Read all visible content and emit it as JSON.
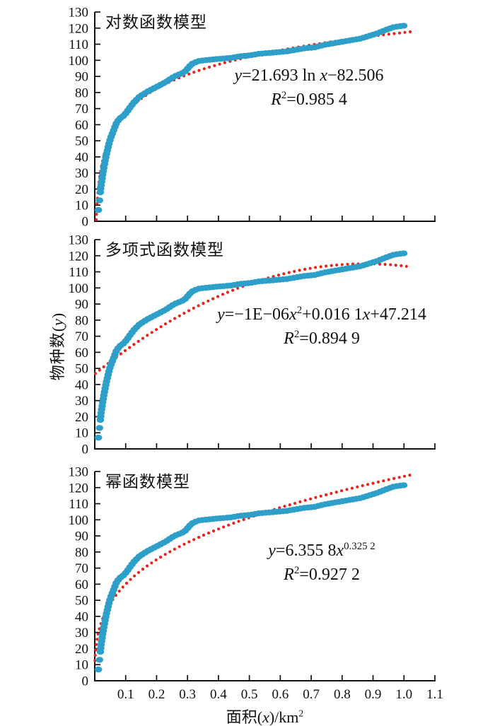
{
  "figure": {
    "x_axis_title_text": "面积(x)/km²",
    "y_axis_title_text": "物种数(y)",
    "x_axis_title_segments": [
      {
        "t": "面积("
      },
      {
        "t": "x",
        "i": 1
      },
      {
        "t": ")/km"
      },
      {
        "t": "2",
        "sup": 1
      }
    ],
    "y_axis_title_segments": [
      {
        "t": "物种数("
      },
      {
        "t": "y",
        "i": 1
      },
      {
        "t": ")"
      }
    ]
  },
  "chart_data": {
    "type": "scatter",
    "xlabel": "面积(x)/km²",
    "ylabel": "物种数(y)",
    "xlim": [
      0,
      1.1
    ],
    "ylim": [
      0,
      130
    ],
    "x_ticks": [
      0.1,
      0.2,
      0.3,
      0.4,
      0.5,
      0.6,
      0.7,
      0.8,
      0.9,
      1.0,
      1.1
    ],
    "y_ticks": [
      0,
      10,
      20,
      30,
      40,
      50,
      60,
      70,
      80,
      90,
      100,
      110,
      120,
      130
    ],
    "grid": false,
    "legend": "none",
    "colors": {
      "points": "#2d9fc9",
      "fit": "#e8231a",
      "axis": "#111111"
    },
    "loose_points": [
      [
        0.012,
        7
      ],
      [
        0.0155,
        13
      ]
    ],
    "species_area_points": [
      [
        0.018,
        18
      ],
      [
        0.021,
        23
      ],
      [
        0.025,
        28
      ],
      [
        0.029,
        33
      ],
      [
        0.033,
        37
      ],
      [
        0.037,
        41
      ],
      [
        0.042,
        45
      ],
      [
        0.047,
        49
      ],
      [
        0.052,
        52
      ],
      [
        0.058,
        55
      ],
      [
        0.064,
        58
      ],
      [
        0.07,
        61
      ],
      [
        0.077,
        63
      ],
      [
        0.085,
        64.5
      ],
      [
        0.093,
        65.5
      ],
      [
        0.1,
        67
      ],
      [
        0.108,
        69
      ],
      [
        0.115,
        71
      ],
      [
        0.125,
        73.5
      ],
      [
        0.135,
        75.5
      ],
      [
        0.145,
        77.5
      ],
      [
        0.158,
        79
      ],
      [
        0.17,
        80.5
      ],
      [
        0.185,
        82
      ],
      [
        0.2,
        83.5
      ],
      [
        0.215,
        85
      ],
      [
        0.23,
        86.5
      ],
      [
        0.245,
        88.5
      ],
      [
        0.258,
        90
      ],
      [
        0.27,
        91
      ],
      [
        0.283,
        92
      ],
      [
        0.295,
        93.5
      ],
      [
        0.303,
        95.5
      ],
      [
        0.312,
        97.5
      ],
      [
        0.322,
        98.5
      ],
      [
        0.335,
        99.5
      ],
      [
        0.355,
        100
      ],
      [
        0.38,
        100.5
      ],
      [
        0.41,
        101
      ],
      [
        0.44,
        101.5
      ],
      [
        0.47,
        102.5
      ],
      [
        0.5,
        103
      ],
      [
        0.53,
        104
      ],
      [
        0.56,
        104.5
      ],
      [
        0.59,
        105
      ],
      [
        0.62,
        105.5
      ],
      [
        0.65,
        106.5
      ],
      [
        0.68,
        107.5
      ],
      [
        0.71,
        108
      ],
      [
        0.74,
        109.5
      ],
      [
        0.77,
        110.5
      ],
      [
        0.8,
        111.5
      ],
      [
        0.83,
        112.5
      ],
      [
        0.86,
        113.5
      ],
      [
        0.885,
        115
      ],
      [
        0.91,
        116.5
      ],
      [
        0.93,
        118
      ],
      [
        0.95,
        119.5
      ],
      [
        0.965,
        120.5
      ],
      [
        0.98,
        121
      ],
      [
        1.0,
        121.5
      ],
      [
        1.01,
        121.5
      ]
    ],
    "panels": [
      {
        "title": "对数函数模型",
        "equation_text": "y=21.693 ln x−82.506",
        "r2_text": "R²=0.985 4",
        "equation_segments": [
          {
            "t": "y",
            "i": 1
          },
          {
            "t": "=21.693 ln "
          },
          {
            "t": "x",
            "i": 1
          },
          {
            "t": "−82.506"
          }
        ],
        "r2_segments": [
          {
            "t": "R",
            "i": 1
          },
          {
            "t": "2",
            "sup": 1
          },
          {
            "t": "=0.985 4"
          }
        ],
        "fit": {
          "type": "log",
          "a": 21.693,
          "b": 117.29,
          "x_start": 0.0047,
          "x_end": 1.025
        }
      },
      {
        "title": "多项式函数模型",
        "equation_text": "y=−1E−06x²+0.016 1x+47.214",
        "r2_text": "R²=0.894 9",
        "equation_segments": [
          {
            "t": "y",
            "i": 1
          },
          {
            "t": "=−1E−06"
          },
          {
            "t": "x",
            "i": 1
          },
          {
            "t": "2",
            "sup": 1
          },
          {
            "t": "+0.016 1"
          },
          {
            "t": "x",
            "i": 1
          },
          {
            "t": "+47.214"
          }
        ],
        "r2_segments": [
          {
            "t": "R",
            "i": 1
          },
          {
            "t": "2",
            "sup": 1
          },
          {
            "t": "=0.894 9"
          }
        ],
        "fit": {
          "type": "quad",
          "c0": 46.5,
          "c1": 156.6,
          "c2": -89.5,
          "x_start": 0.002,
          "x_end": 1.025
        }
      },
      {
        "title": "幂函数模型",
        "equation_text": "y=6.355 8x^0.325 2",
        "r2_text": "R²=0.927 2",
        "equation_segments": [
          {
            "t": "y",
            "i": 1
          },
          {
            "t": "=6.355 8"
          },
          {
            "t": "x",
            "i": 1
          },
          {
            "t": "0.325 2",
            "sup": 1
          }
        ],
        "r2_segments": [
          {
            "t": "R",
            "i": 1
          },
          {
            "t": "2",
            "sup": 1
          },
          {
            "t": "=0.927 2"
          }
        ],
        "fit": {
          "type": "power",
          "c": 127.0,
          "p": 0.3252,
          "x_start": 0.0008,
          "x_end": 1.025
        }
      }
    ]
  }
}
